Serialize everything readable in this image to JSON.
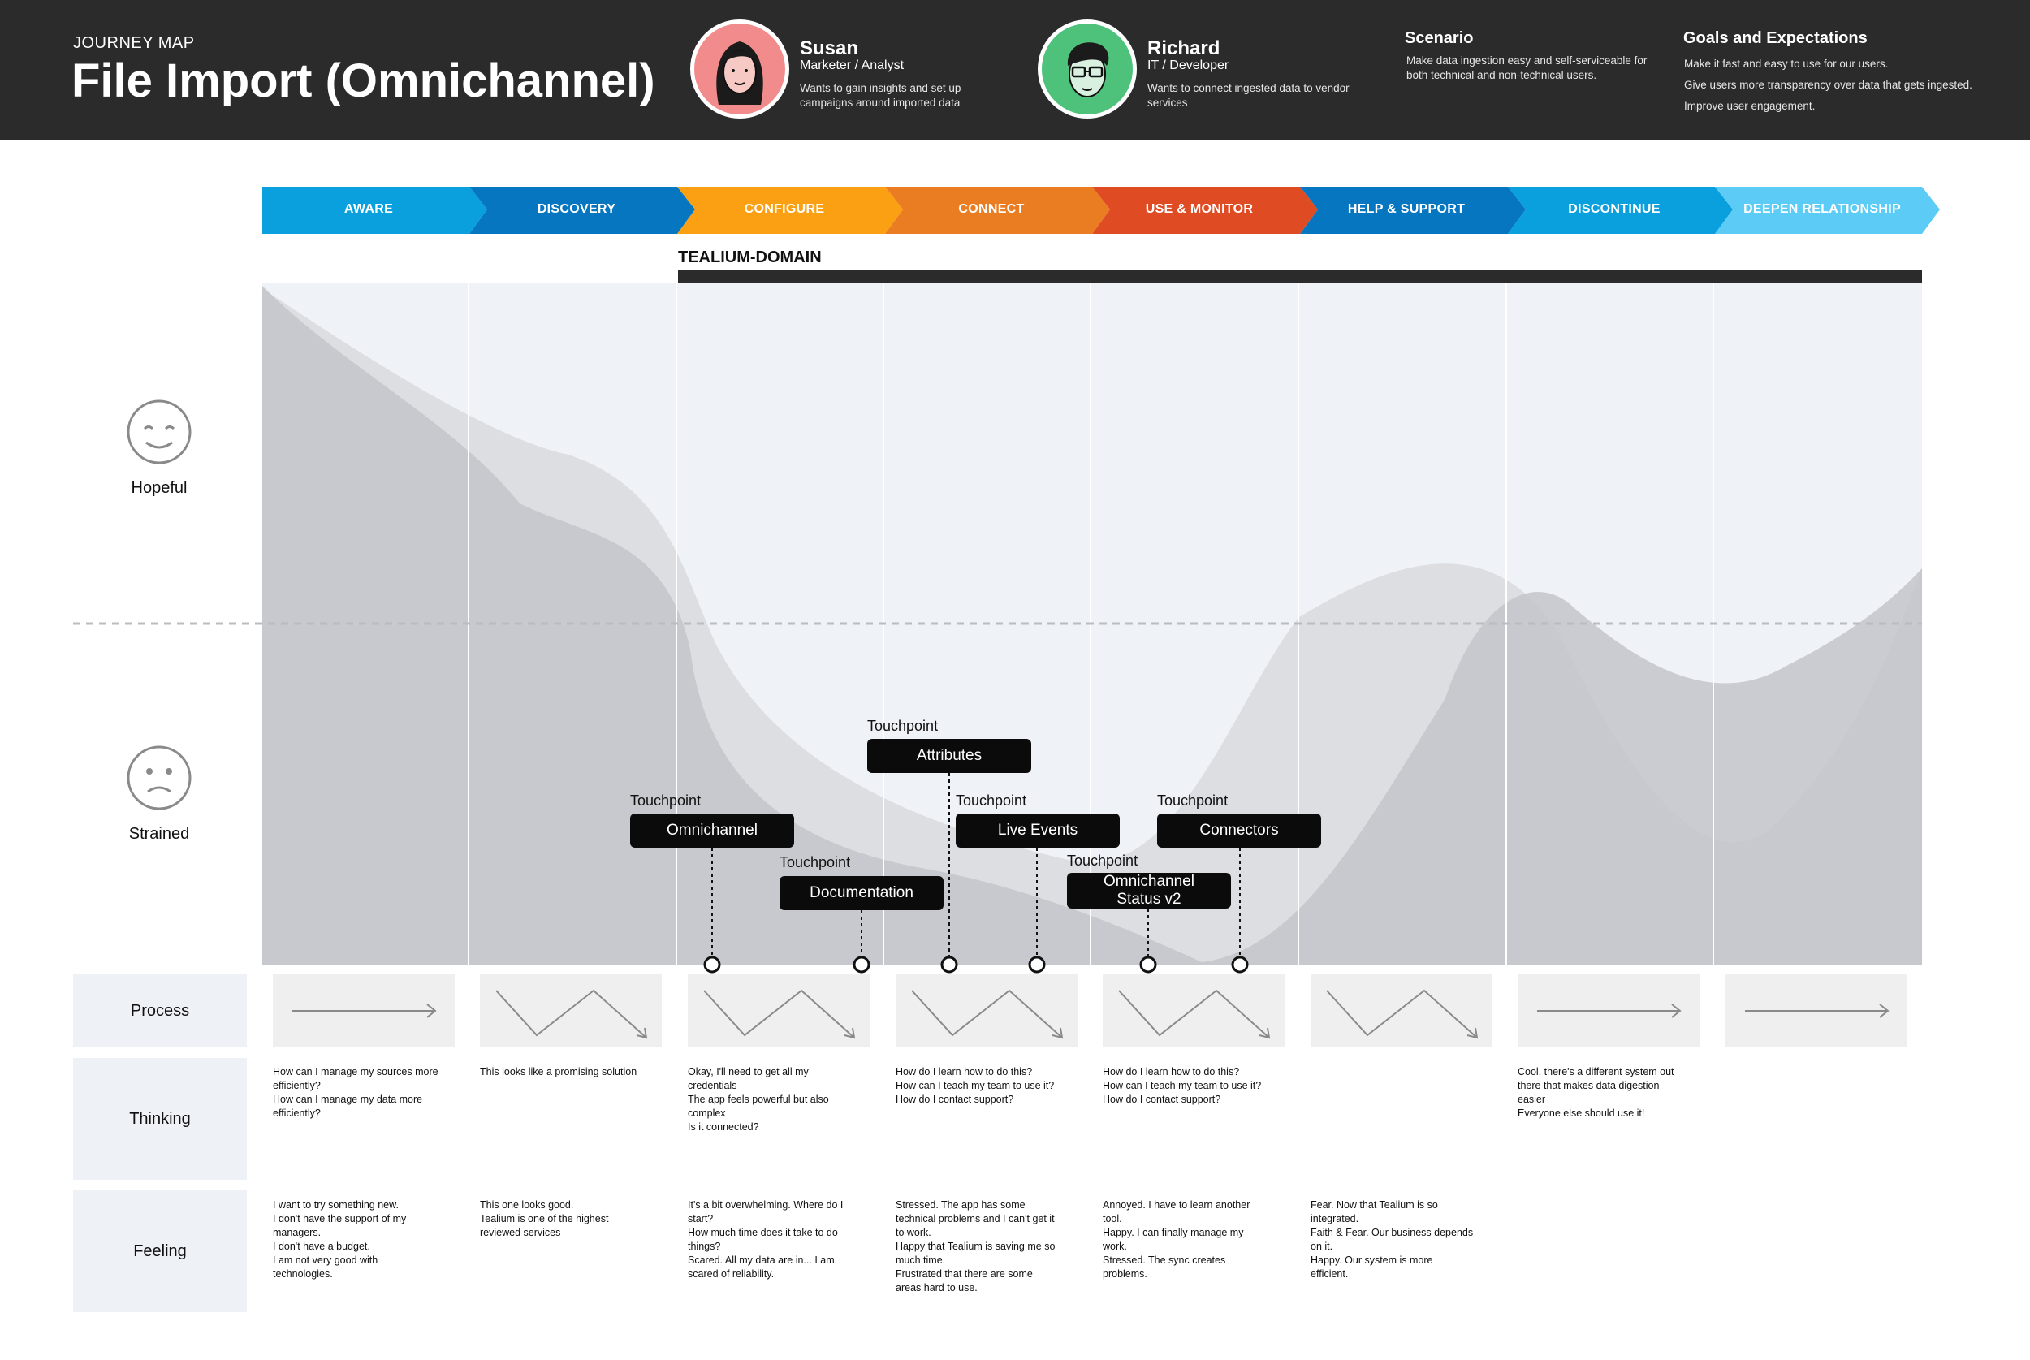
{
  "header": {
    "kicker": "JOURNEY MAP",
    "title": "File Import (Omnichannel)"
  },
  "personas": [
    {
      "name": "Susan",
      "role": "Marketer / Analyst",
      "desc": [
        "Wants to gain insights and set up",
        "campaigns around imported data"
      ],
      "color": "#f28b8b"
    },
    {
      "name": "Richard",
      "role": "IT / Developer",
      "desc": [
        "Wants to connect ingested data to vendor",
        "services"
      ],
      "color": "#4ec27a"
    }
  ],
  "scenario": {
    "heading": "Scenario",
    "lines": [
      "Make data ingestion easy and self-serviceable for",
      "both technical and non-technical users."
    ]
  },
  "goals": {
    "heading": "Goals and Expectations",
    "lines": [
      "Make it fast and easy to use for our users.",
      "Give users more transparency over data that gets ingested.",
      "Improve user engagement."
    ]
  },
  "stages": [
    {
      "label": "AWARE",
      "color": "#0a9fdd"
    },
    {
      "label": "DISCOVERY",
      "color": "#0676c0"
    },
    {
      "label": "CONFIGURE",
      "color": "#fba012"
    },
    {
      "label": "CONNECT",
      "color": "#ea7d21"
    },
    {
      "label": "USE & MONITOR",
      "color": "#df4c24"
    },
    {
      "label": "HELP & SUPPORT",
      "color": "#0676c0"
    },
    {
      "label": "DISCONTINUE",
      "color": "#0a9fdd"
    },
    {
      "label": "DEEPEN RELATIONSHIP",
      "color": "#5ccbf6"
    }
  ],
  "domain_label": "TEALIUM-DOMAIN",
  "emotions": {
    "top": "Hopeful",
    "bottom": "Strained"
  },
  "touchpoint_caption": "Touchpoint",
  "touchpoints": [
    {
      "label": "Omnichannel"
    },
    {
      "label": "Documentation"
    },
    {
      "label": "Attributes"
    },
    {
      "label": "Live Events"
    },
    {
      "label": "Omnichannel\nStatus v2"
    },
    {
      "label": "Connectors"
    }
  ],
  "rows": {
    "process": "Process",
    "thinking": "Thinking",
    "feeling": "Feeling"
  },
  "process_icons": [
    "arrow-right-icon",
    "zigzag-arrow-icon",
    "zigzag-arrow-icon",
    "zigzag-arrow-icon",
    "zigzag-arrow-icon",
    "zigzag-arrow-icon",
    "arrow-right-icon",
    "arrow-right-icon"
  ],
  "thinking": [
    [
      "How can I manage my sources more",
      "efficiently?",
      "How can I manage my data more",
      "efficiently?"
    ],
    [
      "This looks like a promising solution"
    ],
    [
      "Okay, I'll need to get all my",
      "credentials",
      "The app feels powerful but also",
      "complex",
      "Is it connected?"
    ],
    [
      "How do I learn how to do this?",
      "How can I teach my team to use it?",
      "How do I contact support?"
    ],
    [
      "How do I learn how to do this?",
      "How can I teach my team to use it?",
      "How do I contact support?"
    ],
    [],
    [
      "Cool, there's a different system out",
      "there that makes data digestion",
      "easier",
      "Everyone else should use it!"
    ],
    []
  ],
  "feeling": [
    [
      "I want to try something new.",
      "I don't have the support of my",
      "managers.",
      "I don't have a budget.",
      "I am not very good with",
      "technologies."
    ],
    [
      "This one looks good.",
      "Tealium is one of the highest",
      "reviewed services"
    ],
    [
      "It's a bit overwhelming.  Where do I",
      "start?",
      "How much time does it take to do",
      "things?",
      "Scared.  All my data are in... I am",
      "scared of reliability."
    ],
    [
      "Stressed.  The app has some",
      "technical problems and I can't get it",
      "to work.",
      "Happy that Tealium is saving me so",
      "much time.",
      "Frustrated that there are some",
      "areas hard to use."
    ],
    [
      "Annoyed.  I have to learn another",
      "tool.",
      "Happy.  I can finally manage my",
      "work.",
      "Stressed.  The sync creates",
      "problems."
    ],
    [
      "Fear.  Now that Tealium is so",
      "integrated.",
      "Faith & Fear.  Our business depends",
      "on it.",
      "Happy.  Our system is more",
      "efficient."
    ],
    [],
    []
  ]
}
